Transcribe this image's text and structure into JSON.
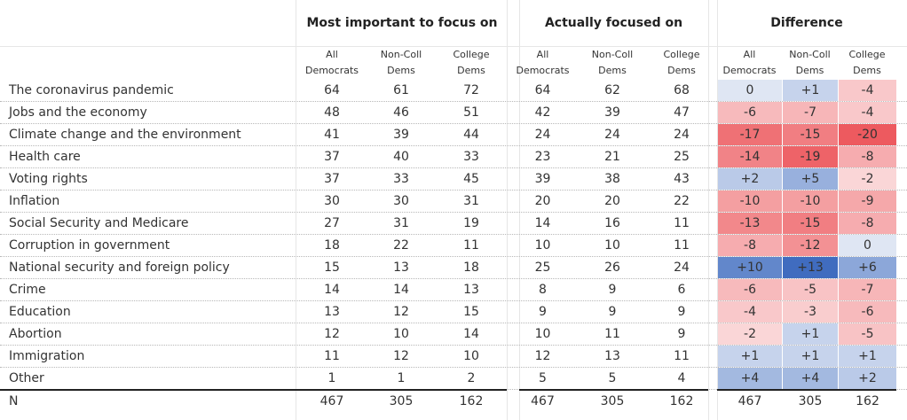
{
  "groups": [
    {
      "label": "Most important to focus on"
    },
    {
      "label": "Actually focused on"
    },
    {
      "label": "Difference"
    }
  ],
  "subheaders": [
    {
      "line1": "All",
      "line2": "Democrats"
    },
    {
      "line1": "Non-Coll",
      "line2": "Dems"
    },
    {
      "line1": "College",
      "line2": "Dems"
    },
    {
      "line1": "All",
      "line2": "Democrats"
    },
    {
      "line1": "Non-Coll",
      "line2": "Dems"
    },
    {
      "line1": "College",
      "line2": "Dems"
    },
    {
      "line1": "All",
      "line2": "Democrats"
    },
    {
      "line1": "Non-Coll",
      "line2": "Dems"
    },
    {
      "line1": "College",
      "line2": "Dems"
    }
  ],
  "rows": [
    {
      "label": "The coronavirus pandemic",
      "important": [
        "64",
        "61",
        "72"
      ],
      "focused": [
        "64",
        "62",
        "68"
      ],
      "diff": [
        "0",
        "+1",
        "-4"
      ]
    },
    {
      "label": "Jobs and the economy",
      "important": [
        "48",
        "46",
        "51"
      ],
      "focused": [
        "42",
        "39",
        "47"
      ],
      "diff": [
        "-6",
        "-7",
        "-4"
      ]
    },
    {
      "label": "Climate change and the environment",
      "important": [
        "41",
        "39",
        "44"
      ],
      "focused": [
        "24",
        "24",
        "24"
      ],
      "diff": [
        "-17",
        "-15",
        "-20"
      ]
    },
    {
      "label": "Health care",
      "important": [
        "37",
        "40",
        "33"
      ],
      "focused": [
        "23",
        "21",
        "25"
      ],
      "diff": [
        "-14",
        "-19",
        "-8"
      ]
    },
    {
      "label": "Voting rights",
      "important": [
        "37",
        "33",
        "45"
      ],
      "focused": [
        "39",
        "38",
        "43"
      ],
      "diff": [
        "+2",
        "+5",
        "-2"
      ]
    },
    {
      "label": "Inflation",
      "important": [
        "30",
        "30",
        "31"
      ],
      "focused": [
        "20",
        "20",
        "22"
      ],
      "diff": [
        "-10",
        "-10",
        "-9"
      ]
    },
    {
      "label": "Social Security and Medicare",
      "important": [
        "27",
        "31",
        "19"
      ],
      "focused": [
        "14",
        "16",
        "11"
      ],
      "diff": [
        "-13",
        "-15",
        "-8"
      ]
    },
    {
      "label": "Corruption in government",
      "important": [
        "18",
        "22",
        "11"
      ],
      "focused": [
        "10",
        "10",
        "11"
      ],
      "diff": [
        "-8",
        "-12",
        "0"
      ]
    },
    {
      "label": "National security and foreign policy",
      "important": [
        "15",
        "13",
        "18"
      ],
      "focused": [
        "25",
        "26",
        "24"
      ],
      "diff": [
        "+10",
        "+13",
        "+6"
      ]
    },
    {
      "label": "Crime",
      "important": [
        "14",
        "14",
        "13"
      ],
      "focused": [
        "8",
        "9",
        "6"
      ],
      "diff": [
        "-6",
        "-5",
        "-7"
      ]
    },
    {
      "label": "Education",
      "important": [
        "13",
        "12",
        "15"
      ],
      "focused": [
        "9",
        "9",
        "9"
      ],
      "diff": [
        "-4",
        "-3",
        "-6"
      ]
    },
    {
      "label": "Abortion",
      "important": [
        "12",
        "10",
        "14"
      ],
      "focused": [
        "10",
        "11",
        "9"
      ],
      "diff": [
        "-2",
        "+1",
        "-5"
      ]
    },
    {
      "label": "Immigration",
      "important": [
        "11",
        "12",
        "10"
      ],
      "focused": [
        "12",
        "13",
        "11"
      ],
      "diff": [
        "+1",
        "+1",
        "+1"
      ]
    },
    {
      "label": "Other",
      "important": [
        "1",
        "1",
        "2"
      ],
      "focused": [
        "5",
        "5",
        "4"
      ],
      "diff": [
        "+4",
        "+4",
        "+2"
      ]
    }
  ],
  "n_row": {
    "label": "N",
    "important": [
      "467",
      "305",
      "162"
    ],
    "focused": [
      "467",
      "305",
      "162"
    ],
    "diff": [
      "467",
      "305",
      "162"
    ]
  },
  "colors": {
    "positive": "#4e79c4",
    "negative": "#e8474b",
    "neutral": "#eef1f8"
  }
}
